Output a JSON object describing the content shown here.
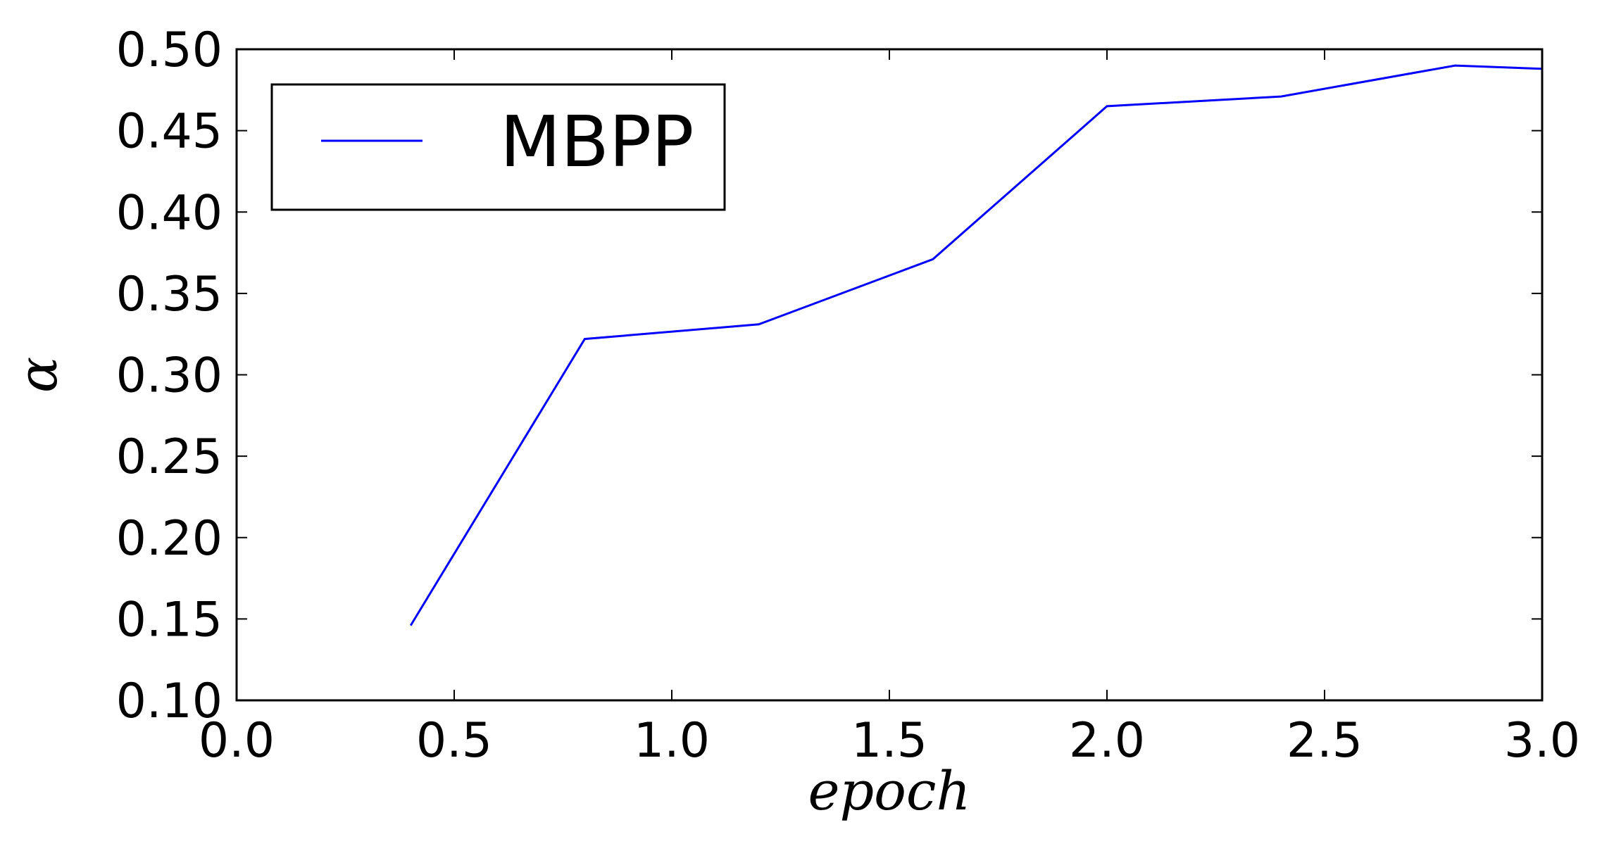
{
  "chart_data": {
    "type": "line",
    "xlabel": "epoch",
    "ylabel": "α",
    "xlim": [
      0.0,
      3.0
    ],
    "ylim": [
      0.1,
      0.5
    ],
    "xticks": [
      "0.0",
      "0.5",
      "1.0",
      "1.5",
      "2.0",
      "2.5",
      "3.0"
    ],
    "yticks": [
      "0.10",
      "0.15",
      "0.20",
      "0.25",
      "0.30",
      "0.35",
      "0.40",
      "0.45",
      "0.50"
    ],
    "grid": false,
    "legend_position": "top-left",
    "series": [
      {
        "name": "MBPP",
        "color": "#0000ff",
        "x": [
          0.4,
          0.8,
          1.2,
          1.6,
          2.0,
          2.4,
          2.8,
          3.0
        ],
        "y": [
          0.146,
          0.322,
          0.331,
          0.371,
          0.465,
          0.471,
          0.49,
          0.488
        ]
      }
    ]
  }
}
